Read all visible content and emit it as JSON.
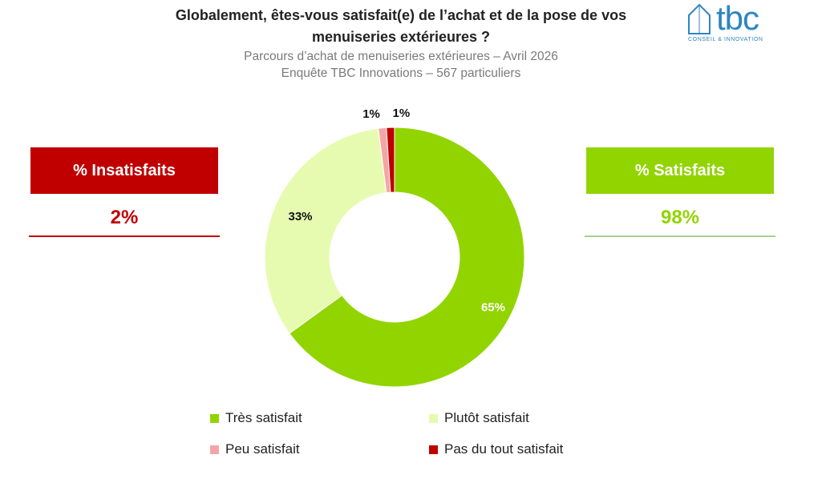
{
  "header": {
    "title_line1": "Globalement, êtes-vous satisfait(e) de l’achat et de la pose de vos",
    "title_line2": "menuiseries extérieures ?",
    "subtitle_line1": "Parcours d’achat de menuiseries extérieures – Avril 2026",
    "subtitle_line2": "Enquête TBC Innovations – 567 particuliers"
  },
  "logo": {
    "name": "tbc",
    "tagline": "CONSEIL & INNOVATION",
    "icon": "house-outline-icon",
    "color": "#2e86c1"
  },
  "kpis": {
    "left": {
      "label": "% Insatisfaits",
      "value": "2%",
      "color": "#c00000"
    },
    "right": {
      "label": "% Satisfaits",
      "value": "98%",
      "color": "#92d400"
    }
  },
  "chart_data": {
    "type": "pie",
    "donut": true,
    "slices": [
      {
        "label": "Très satisfait",
        "value": 65,
        "display": "65%",
        "color": "#92d400",
        "label_color": "#ffffff"
      },
      {
        "label": "Plutôt satisfait",
        "value": 33,
        "display": "33%",
        "color": "#e6fbb0",
        "label_color": "#111111"
      },
      {
        "label": "Peu satisfait",
        "value": 1,
        "display": "1%",
        "color": "#f4a6a6",
        "label_color": "#111111"
      },
      {
        "label": "Pas du tout satisfait",
        "value": 1,
        "display": "1%",
        "color": "#c00000",
        "label_color": "#111111"
      }
    ],
    "legend_position": "bottom"
  },
  "legend": [
    {
      "label": "Très satisfait",
      "color": "#92d400"
    },
    {
      "label": "Plutôt satisfait",
      "color": "#e6fbb0"
    },
    {
      "label": "Peu satisfait",
      "color": "#f4a6a6"
    },
    {
      "label": "Pas du tout satisfait",
      "color": "#c00000"
    }
  ]
}
